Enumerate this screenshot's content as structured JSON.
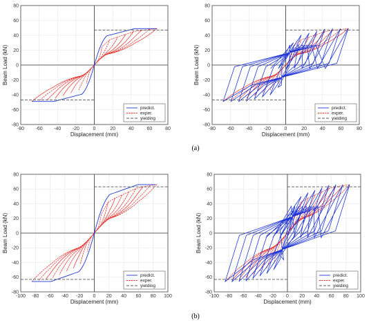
{
  "captions": [
    "(a)",
    "(b)"
  ],
  "colors": {
    "predict": "#1f35d6",
    "exper": "#e8231f",
    "yielding": "#555555",
    "grid": "#e6e6e6"
  },
  "chart_data": [
    {
      "type": "line",
      "xlabel": "Displacement (mm)",
      "ylabel": "Beam Load (kN)",
      "xlim": [
        -80,
        80
      ],
      "ylim": [
        -80,
        80
      ],
      "xticks": [
        -80,
        -60,
        -40,
        -20,
        0,
        20,
        40,
        60,
        80
      ],
      "yticks": [
        -80,
        -60,
        -40,
        -20,
        0,
        20,
        40,
        60,
        80
      ],
      "grid": true,
      "legend_position": "bottom-right",
      "yield_load": 47,
      "peak_load": 49,
      "max_disp": 68,
      "init_stiff": 4.2,
      "loops": 8,
      "series": [
        {
          "name": "predict."
        },
        {
          "name": "exper."
        },
        {
          "name": "yielding"
        }
      ]
    },
    {
      "type": "line",
      "xlabel": "Displacement (mm)",
      "ylabel": "Beam Load (kN)",
      "xlim": [
        -80,
        80
      ],
      "ylim": [
        -80,
        80
      ],
      "xticks": [
        -80,
        -60,
        -40,
        -20,
        0,
        20,
        40,
        60,
        80
      ],
      "yticks": [
        -80,
        -60,
        -40,
        -20,
        0,
        20,
        40,
        60,
        80
      ],
      "grid": true,
      "legend_position": "bottom-right",
      "yield_load": 47,
      "peak_load": 49,
      "max_disp": 68,
      "init_stiff": 4.2,
      "loops": 8,
      "series": [
        {
          "name": "predict."
        },
        {
          "name": "exper."
        },
        {
          "name": "yielding"
        }
      ]
    },
    {
      "type": "line",
      "xlabel": "Displacement (mm)",
      "ylabel": "Beam Load (kN)",
      "xlim": [
        -100,
        100
      ],
      "ylim": [
        -80,
        80
      ],
      "xticks": [
        -100,
        -80,
        -60,
        -40,
        -20,
        0,
        20,
        40,
        60,
        80,
        100
      ],
      "yticks": [
        -80,
        -60,
        -40,
        -20,
        0,
        20,
        40,
        60,
        80
      ],
      "grid": true,
      "legend_position": "bottom-right",
      "yield_load": 63,
      "peak_load": 66,
      "max_disp": 85,
      "init_stiff": 3.6,
      "loops": 9,
      "series": [
        {
          "name": "predict."
        },
        {
          "name": "exper."
        },
        {
          "name": "yielding"
        }
      ]
    },
    {
      "type": "line",
      "xlabel": "Displacement (mm)",
      "ylabel": "Beam Load (kN)",
      "xlim": [
        -100,
        100
      ],
      "ylim": [
        -80,
        80
      ],
      "xticks": [
        -100,
        -80,
        -60,
        -40,
        -20,
        0,
        20,
        40,
        60,
        80,
        100
      ],
      "yticks": [
        -80,
        -60,
        -40,
        -20,
        0,
        20,
        40,
        60,
        80
      ],
      "grid": true,
      "legend_position": "bottom-right",
      "yield_load": 63,
      "peak_load": 66,
      "max_disp": 85,
      "init_stiff": 3.6,
      "loops": 9,
      "series": [
        {
          "name": "predict."
        },
        {
          "name": "exper."
        },
        {
          "name": "yielding"
        }
      ]
    }
  ]
}
